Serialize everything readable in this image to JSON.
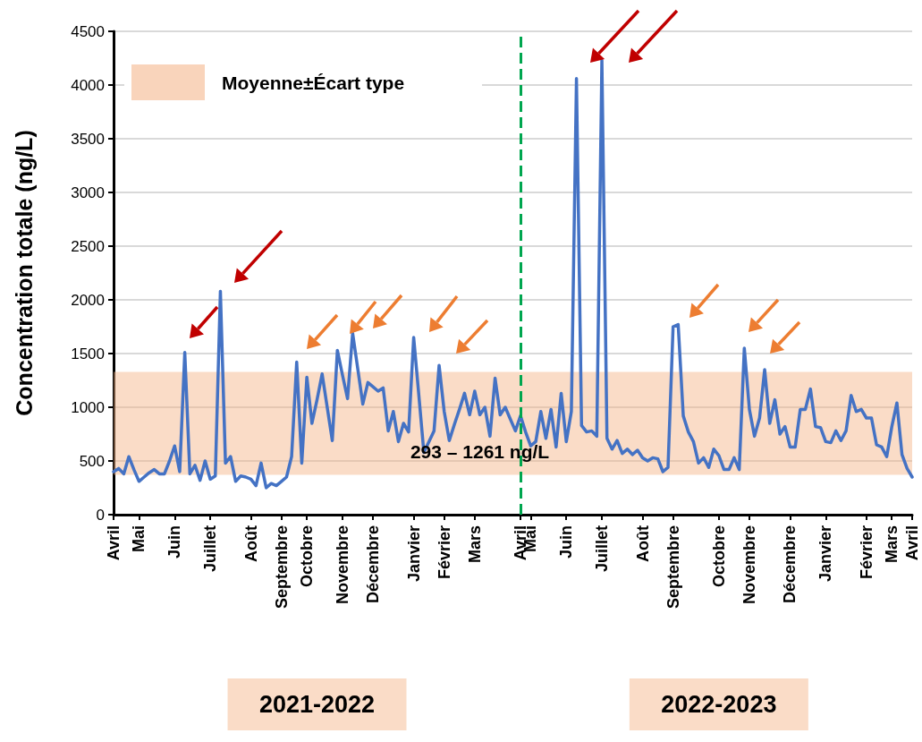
{
  "chart_data": {
    "type": "line",
    "ylabel": "Concentration totale (ng/L)",
    "categories": [
      "Avril",
      null,
      null,
      null,
      null,
      "Mai",
      null,
      null,
      null,
      null,
      null,
      null,
      "Juin",
      null,
      null,
      null,
      null,
      null,
      null,
      "Juillet",
      null,
      null,
      null,
      null,
      null,
      null,
      null,
      "Août",
      null,
      null,
      null,
      null,
      null,
      "Septembre",
      null,
      null,
      null,
      null,
      "Octobre",
      null,
      null,
      null,
      null,
      null,
      null,
      "Novembre",
      null,
      null,
      null,
      null,
      null,
      "Décembre",
      null,
      null,
      null,
      null,
      null,
      null,
      null,
      "Janvier",
      null,
      null,
      null,
      null,
      null,
      "Février",
      null,
      null,
      null,
      null,
      null,
      "Mars",
      null,
      null,
      null,
      null,
      null,
      null,
      null,
      null,
      "Avril",
      null,
      "Mai",
      null,
      null,
      null,
      null,
      null,
      null,
      "Juin",
      null,
      null,
      null,
      null,
      null,
      null,
      "Juillet",
      null,
      null,
      null,
      null,
      null,
      null,
      null,
      "Août",
      null,
      null,
      null,
      null,
      null,
      "Septembre",
      null,
      null,
      null,
      null,
      null,
      null,
      null,
      null,
      "Octobre",
      null,
      null,
      null,
      null,
      null,
      "Novembre",
      null,
      null,
      null,
      null,
      null,
      null,
      null,
      "Décembre",
      null,
      null,
      null,
      null,
      null,
      null,
      "Janvier",
      null,
      null,
      null,
      null,
      null,
      null,
      null,
      "Février",
      null,
      null,
      null,
      null,
      "Mars",
      null,
      null,
      null,
      "Avril"
    ],
    "series": [
      {
        "color": "#4472c4",
        "values": [
          400,
          430,
          380,
          540,
          420,
          310,
          350,
          390,
          420,
          380,
          380,
          500,
          640,
          400,
          1510,
          380,
          460,
          320,
          500,
          330,
          360,
          2080,
          480,
          540,
          310,
          360,
          350,
          330,
          270,
          480,
          250,
          290,
          270,
          310,
          350,
          540,
          1420,
          480,
          1280,
          850,
          1070,
          1310,
          1000,
          690,
          1530,
          1300,
          1080,
          1690,
          1360,
          1030,
          1230,
          1190,
          1150,
          1180,
          780,
          960,
          680,
          850,
          770,
          1650,
          1120,
          580,
          680,
          780,
          1390,
          960,
          690,
          840,
          980,
          1130,
          930,
          1150,
          930,
          1000,
          730,
          1270,
          930,
          1000,
          890,
          780,
          920,
          770,
          640,
          680,
          960,
          710,
          980,
          630,
          1130,
          680,
          960,
          4060,
          830,
          770,
          780,
          730,
          4230,
          710,
          610,
          690,
          570,
          610,
          560,
          600,
          530,
          500,
          530,
          520,
          400,
          440,
          1750,
          1770,
          920,
          770,
          680,
          480,
          530,
          440,
          610,
          550,
          420,
          420,
          530,
          420,
          1550,
          980,
          730,
          900,
          1350,
          850,
          1070,
          750,
          820,
          630,
          630,
          980,
          980,
          1170,
          820,
          810,
          680,
          670,
          780,
          690,
          780,
          1110,
          960,
          980,
          900,
          900,
          650,
          630,
          540,
          820,
          1040,
          560,
          430,
          350
        ]
      }
    ],
    "ylim": [
      0,
      4500
    ],
    "yticks": [
      0,
      500,
      1000,
      1500,
      2000,
      2500,
      3000,
      3500,
      4000,
      4500
    ],
    "grid": "y",
    "marker": "none",
    "legend": "top left",
    "bands": [
      {
        "axis": "y",
        "from": 370,
        "to": 1330,
        "label": "Moyenne±Écart type",
        "color": "#f4b183"
      }
    ],
    "annotations": [
      "2021-2022",
      "2022-2023",
      "293 – 1261 ng/L"
    ]
  }
}
